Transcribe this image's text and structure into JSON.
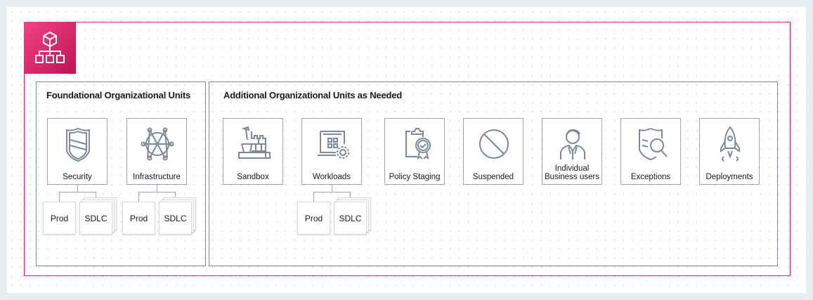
{
  "foundational": {
    "title": "Foundational Organizational Units",
    "units": [
      {
        "label": "Security",
        "icon": "shield-icon",
        "children": [
          "Prod",
          "SDLC"
        ]
      },
      {
        "label": "Infrastructure",
        "icon": "network-icon",
        "children": [
          "Prod",
          "SDLC"
        ]
      }
    ]
  },
  "additional": {
    "title": "Additional Organizational Units as Needed",
    "units": [
      {
        "label": "Sandbox",
        "icon": "sandbox-icon"
      },
      {
        "label": "Workloads",
        "icon": "workloads-icon",
        "children": [
          "Prod",
          "SDLC"
        ]
      },
      {
        "label": "Policy Staging",
        "icon": "policy-icon"
      },
      {
        "label": "Suspended",
        "icon": "prohibited-icon"
      },
      {
        "label": "Individual Business users",
        "icon": "user-icon"
      },
      {
        "label": "Exceptions",
        "icon": "exceptions-icon"
      },
      {
        "label": "Deployments",
        "icon": "rocket-icon"
      }
    ]
  },
  "colors": {
    "group_border": "#e7157b",
    "icon_stroke": "#7d8998"
  }
}
